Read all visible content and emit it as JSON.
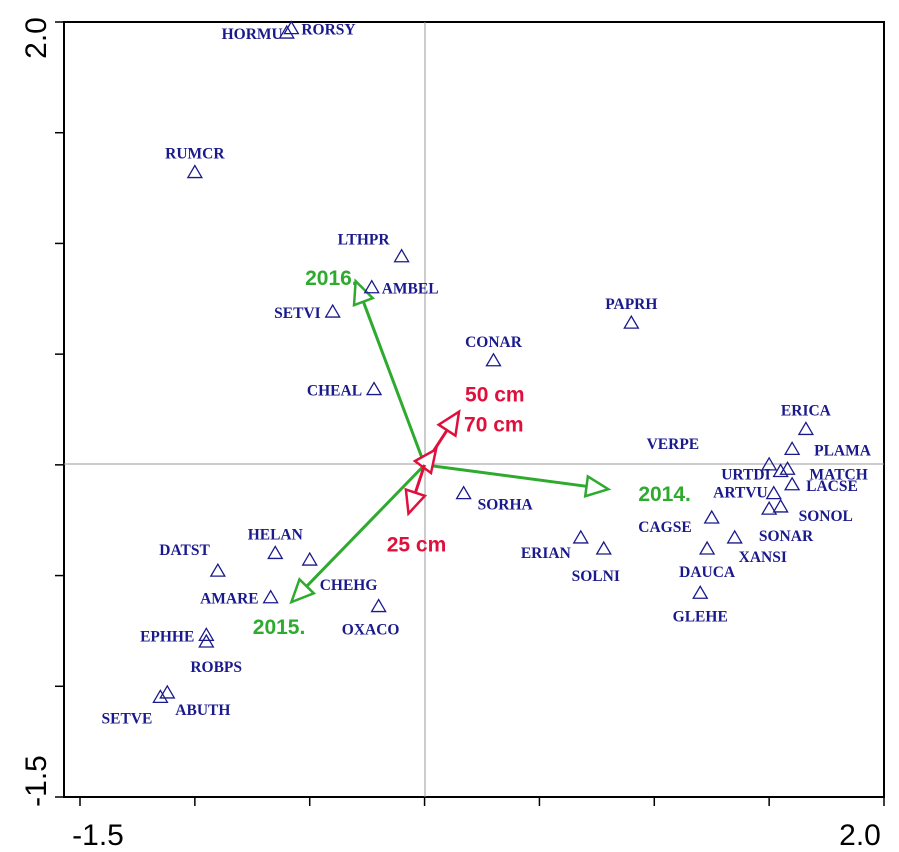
{
  "chart_data": {
    "type": "scatter",
    "xlim": [
      -1.5,
      2.0
    ],
    "ylim": [
      -1.5,
      2.0
    ],
    "x_tick_labels": [
      "-1.5",
      "2.0"
    ],
    "y_tick_labels": [
      "2.0",
      "-1.5"
    ],
    "grid": false,
    "colors": {
      "species": "#1a1a8c",
      "year_vectors": "#2eaa2e",
      "depth_vectors": "#e0103c",
      "zero_lines": "#999999"
    },
    "species": [
      {
        "label": "HORMU",
        "x": -0.6,
        "y": 1.95,
        "anchor": "end",
        "dx": -4,
        "dy": 6
      },
      {
        "label": "RORSY",
        "x": -0.58,
        "y": 1.97,
        "anchor": "start",
        "dx": 10,
        "dy": 6
      },
      {
        "label": "RUMCR",
        "x": -1.0,
        "y": 1.32,
        "anchor": "middle",
        "dx": 0,
        "dy": -14
      },
      {
        "label": "LTHPR",
        "x": -0.1,
        "y": 0.94,
        "anchor": "end",
        "dx": -12,
        "dy": -12
      },
      {
        "label": "AMBEL",
        "x": -0.23,
        "y": 0.8,
        "anchor": "start",
        "dx": 10,
        "dy": 6
      },
      {
        "label": "SETVI",
        "x": -0.4,
        "y": 0.69,
        "anchor": "end",
        "dx": -12,
        "dy": 6
      },
      {
        "label": "CONAR",
        "x": 0.3,
        "y": 0.47,
        "anchor": "middle",
        "dx": 0,
        "dy": -14
      },
      {
        "label": "PAPRH",
        "x": 0.9,
        "y": 0.64,
        "anchor": "middle",
        "dx": 0,
        "dy": -14
      },
      {
        "label": "CHEAL",
        "x": -0.22,
        "y": 0.34,
        "anchor": "end",
        "dx": -12,
        "dy": 6
      },
      {
        "label": "ERICA",
        "x": 1.66,
        "y": 0.16,
        "anchor": "middle",
        "dx": 0,
        "dy": -14
      },
      {
        "label": "PLAMA",
        "x": 1.6,
        "y": 0.07,
        "anchor": "start",
        "dx": 22,
        "dy": 6
      },
      {
        "label": "VERPE",
        "x": 1.5,
        "y": 0.0,
        "anchor": "end",
        "dx": -70,
        "dy": -16
      },
      {
        "label": "URTDI",
        "x": 1.55,
        "y": -0.03,
        "anchor": "end",
        "dx": -10,
        "dy": 8
      },
      {
        "label": "MATCH",
        "x": 1.58,
        "y": -0.02,
        "anchor": "start",
        "dx": 22,
        "dy": 10
      },
      {
        "label": "ARTVU",
        "x": 1.52,
        "y": -0.13,
        "anchor": "end",
        "dx": -6,
        "dy": 4
      },
      {
        "label": "LACSE",
        "x": 1.6,
        "y": -0.09,
        "anchor": "start",
        "dx": 14,
        "dy": 6
      },
      {
        "label": "SONOL",
        "x": 1.55,
        "y": -0.19,
        "anchor": "start",
        "dx": 18,
        "dy": 14
      },
      {
        "label": "SONAR",
        "x": 1.5,
        "y": -0.2,
        "anchor": "end",
        "dx": 44,
        "dy": 32
      },
      {
        "label": "SORHA",
        "x": 0.17,
        "y": -0.13,
        "anchor": "start",
        "dx": 14,
        "dy": 16
      },
      {
        "label": "CAGSE",
        "x": 1.25,
        "y": -0.24,
        "anchor": "end",
        "dx": -20,
        "dy": 14
      },
      {
        "label": "XANSI",
        "x": 1.35,
        "y": -0.33,
        "anchor": "start",
        "dx": 4,
        "dy": 24
      },
      {
        "label": "ERIAN",
        "x": 0.68,
        "y": -0.33,
        "anchor": "end",
        "dx": -10,
        "dy": 20
      },
      {
        "label": "SOLNI",
        "x": 0.78,
        "y": -0.38,
        "anchor": "middle",
        "dx": -8,
        "dy": 32
      },
      {
        "label": "DAUCA",
        "x": 1.23,
        "y": -0.38,
        "anchor": "middle",
        "dx": 0,
        "dy": 28
      },
      {
        "label": "GLEHE",
        "x": 1.2,
        "y": -0.58,
        "anchor": "middle",
        "dx": 0,
        "dy": 28
      },
      {
        "label": "HELAN",
        "x": -0.65,
        "y": -0.4,
        "anchor": "middle",
        "dx": 0,
        "dy": -14
      },
      {
        "label": "DATST",
        "x": -0.9,
        "y": -0.48,
        "anchor": "end",
        "dx": -8,
        "dy": -16
      },
      {
        "label": "CHEHG",
        "x": -0.5,
        "y": -0.43,
        "anchor": "start",
        "dx": 10,
        "dy": 30
      },
      {
        "label": "AMARE",
        "x": -0.67,
        "y": -0.6,
        "anchor": "end",
        "dx": -12,
        "dy": 6
      },
      {
        "label": "OXACO",
        "x": -0.2,
        "y": -0.64,
        "anchor": "middle",
        "dx": -8,
        "dy": 28
      },
      {
        "label": "EPHHE",
        "x": -0.95,
        "y": -0.77,
        "anchor": "end",
        "dx": -12,
        "dy": 6
      },
      {
        "label": "ROBPS",
        "x": -0.95,
        "y": -0.8,
        "anchor": "start",
        "dx": -16,
        "dy": 30
      },
      {
        "label": "SETVE",
        "x": -1.15,
        "y": -1.05,
        "anchor": "end",
        "dx": -8,
        "dy": 26
      },
      {
        "label": "ABUTH",
        "x": -1.12,
        "y": -1.03,
        "anchor": "start",
        "dx": 8,
        "dy": 22
      }
    ],
    "vectors": [
      {
        "label": "2016.",
        "x": -0.3,
        "y": 0.83,
        "group": "year",
        "anchor": "end",
        "dx": 2,
        "dy": 4
      },
      {
        "label": "2014.",
        "x": 0.8,
        "y": -0.11,
        "group": "year",
        "anchor": "start",
        "dx": 30,
        "dy": 12
      },
      {
        "label": "2015.",
        "x": -0.58,
        "y": -0.62,
        "group": "year",
        "anchor": "end",
        "dx": 14,
        "dy": 32
      },
      {
        "label": "50 cm",
        "x": 0.15,
        "y": 0.24,
        "group": "depth",
        "anchor": "start",
        "dx": 6,
        "dy": -10
      },
      {
        "label": "70 cm",
        "x": 0.05,
        "y": 0.07,
        "group": "depth",
        "anchor": "start",
        "dx": 28,
        "dy": -18
      },
      {
        "label": "25 cm",
        "x": -0.07,
        "y": -0.22,
        "group": "depth",
        "anchor": "middle",
        "dx": 8,
        "dy": 38
      }
    ]
  }
}
